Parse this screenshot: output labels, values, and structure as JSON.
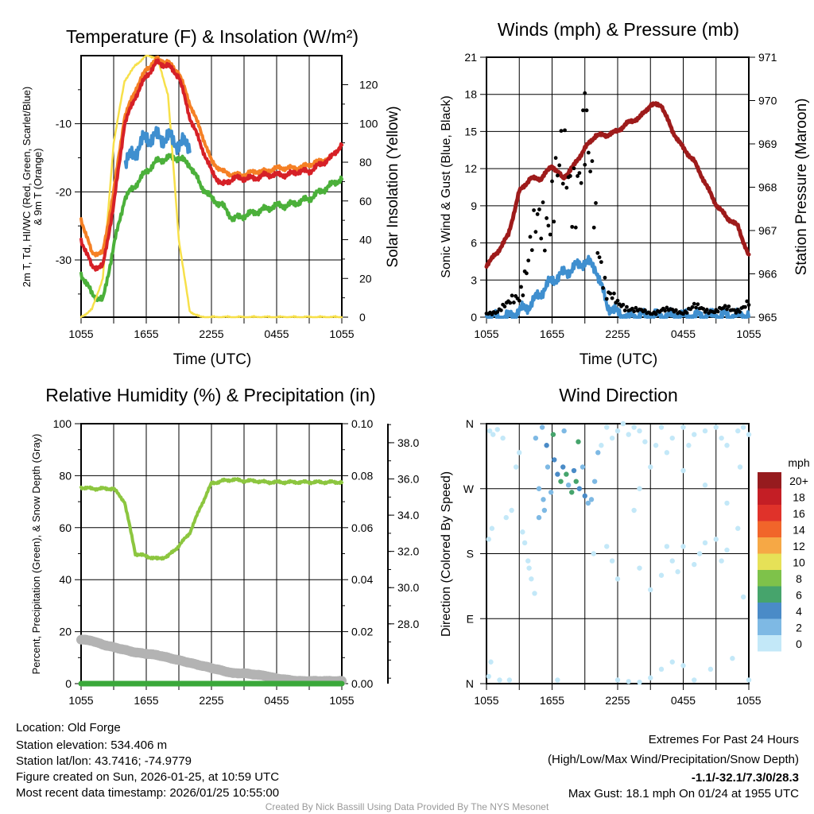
{
  "colors": {
    "red": "#d62027",
    "orange": "#f58025",
    "green": "#4bb03a",
    "blue": "#3f8fcf",
    "yellow": "#f7e04a",
    "maroon": "#9e1b1b",
    "black": "#000000",
    "rh": "#8cc63f",
    "precip": "#3aa83a",
    "snow": "#b3b3b3",
    "credit": "#999999",
    "extreme": "#d0202a"
  },
  "x_ticks": [
    "1055",
    "1655",
    "2255",
    "0455",
    "1055"
  ],
  "chart_data": [
    {
      "type": "line",
      "title": "Temperature (F) & Insolation (W/m²)",
      "xlabel": "Time (UTC)",
      "ylabel": "2m T, Td, HI/WC (Red, Green, Scarlet/Blue)",
      "ylabel2": "& 9m T (Orange)",
      "y2label": "Solar Insolation (Yellow)",
      "ylim": [
        -38.4,
        0
      ],
      "y2lim": [
        0,
        135
      ],
      "yticks": [
        "-30",
        "-20",
        "-10"
      ],
      "ytick_values": [
        -30,
        -20,
        -10
      ],
      "y2ticks": [
        "0",
        "20",
        "40",
        "60",
        "80",
        "100",
        "120"
      ],
      "x_hours": [
        0,
        1,
        2,
        3,
        4,
        5,
        6,
        7,
        8,
        9,
        10,
        11,
        12,
        13,
        14,
        15,
        16,
        17,
        18,
        19,
        20,
        21,
        22,
        23,
        24
      ],
      "series": [
        {
          "name": "2m T",
          "color_key": "red",
          "values": [
            -27,
            -31,
            -31,
            -22,
            -10,
            -6,
            -3,
            -1,
            -1.5,
            -3,
            -9,
            -13,
            -17,
            -19,
            -18,
            -18,
            -18,
            -17.5,
            -17.5,
            -17.5,
            -17,
            -17,
            -16,
            -15,
            -13
          ]
        },
        {
          "name": "9m T",
          "color_key": "orange",
          "values": [
            -24,
            -29,
            -29,
            -20,
            -9,
            -5,
            -2,
            -0.5,
            -1,
            -2.5,
            -7,
            -11,
            -15.5,
            -17,
            -17.5,
            -17.5,
            -17,
            -17,
            -16.5,
            -16.5,
            -16.5,
            -16,
            -15.5,
            -15,
            -13
          ]
        },
        {
          "name": "Td",
          "color_key": "green",
          "values": [
            -32,
            -35,
            -36,
            -28,
            -21,
            -19,
            -17,
            -15.5,
            -15,
            -15,
            -16,
            -19,
            -21,
            -22,
            -24,
            -23.5,
            -23,
            -22.5,
            -22,
            -22,
            -21.5,
            -21,
            -20,
            -19,
            -18
          ]
        },
        {
          "name": "HI/WC",
          "color_key": "blue",
          "values": [
            null,
            null,
            null,
            null,
            -16,
            -14,
            -12,
            -12,
            -12,
            -13,
            -13,
            null,
            null,
            null,
            null,
            null,
            null,
            null,
            null,
            null,
            null,
            null,
            null,
            null,
            null
          ]
        },
        {
          "name": "Solar Insolation",
          "color_key": "yellow",
          "axis": "y2",
          "values": [
            0,
            4,
            20,
            90,
            122,
            130,
            135,
            134,
            115,
            40,
            3,
            0,
            0,
            0,
            0,
            0,
            0,
            0,
            0,
            0,
            0,
            0,
            0,
            0,
            0
          ]
        }
      ]
    },
    {
      "type": "line",
      "title": "Winds (mph) & Pressure (mb)",
      "xlabel": "Time (UTC)",
      "ylabel": "Sonic Wind & Gust (Blue, Black)",
      "y2label": "Station Pressure (Maroon)",
      "ylim": [
        0,
        21
      ],
      "y2lim": [
        965,
        971
      ],
      "yticks": [
        "0",
        "3",
        "6",
        "9",
        "12",
        "15",
        "18",
        "21"
      ],
      "y2ticks": [
        "965",
        "966",
        "967",
        "968",
        "969",
        "970",
        "971"
      ],
      "x_hours": [
        0,
        1,
        2,
        3,
        4,
        5,
        6,
        7,
        8,
        9,
        10,
        11,
        12,
        13,
        14,
        15,
        16,
        17,
        18,
        19,
        20,
        21,
        22,
        23,
        24
      ],
      "series": [
        {
          "name": "Sonic Wind",
          "color_key": "blue",
          "values": [
            0,
            0,
            0,
            0.5,
            1,
            2,
            3,
            3.5,
            4,
            4.5,
            4,
            1,
            0.3,
            0,
            0.1,
            0.1,
            0.1,
            0.1,
            0.1,
            0.1,
            0.1,
            0.1,
            0.1,
            0.1,
            0.2
          ]
        },
        {
          "name": "Gust",
          "color_key": "black",
          "type": "scatter",
          "values": [
            0.3,
            0.5,
            1,
            2,
            5,
            8,
            10,
            11,
            12,
            13,
            8,
            2,
            1,
            0.8,
            0.5,
            0.3,
            0.6,
            0.5,
            0.4,
            0.8,
            0.6,
            0.5,
            0.7,
            0.6,
            1
          ]
        },
        {
          "name": "Station Pressure",
          "color_key": "maroon",
          "axis": "y2",
          "values": [
            966.2,
            966.5,
            966.9,
            967.9,
            968.2,
            968.2,
            968.5,
            968.2,
            968.5,
            968.9,
            969.2,
            969.2,
            969.3,
            969.5,
            969.6,
            969.9,
            969.9,
            969.3,
            968.9,
            968.6,
            968.1,
            967.6,
            967.3,
            967.1,
            966.4
          ]
        }
      ]
    },
    {
      "type": "line",
      "title": "Relative Humidity (%) & Precipitation (in)",
      "ylabel": "Percent, Precipitation (Green), & Snow Depth (Gray)",
      "ylim": [
        0,
        100
      ],
      "y2lim": [
        0,
        0.1
      ],
      "y3lim": [
        24.7,
        39.05
      ],
      "yticks": [
        "0",
        "20",
        "40",
        "60",
        "80",
        "100"
      ],
      "y2ticks": [
        "0.00",
        "0.02",
        "0.04",
        "0.06",
        "0.08",
        "0.10"
      ],
      "y3ticks": [
        "28.0",
        "30.0",
        "32.0",
        "34.0",
        "36.0",
        "38.0"
      ],
      "x_hours": [
        0,
        1,
        2,
        3,
        4,
        5,
        6,
        7,
        8,
        9,
        10,
        11,
        12,
        13,
        14,
        15,
        16,
        17,
        18,
        19,
        20,
        21,
        22,
        23,
        24
      ],
      "series": [
        {
          "name": "Relative Humidity",
          "color_key": "rh",
          "values": [
            75.5,
            75,
            75,
            75,
            70,
            50,
            49,
            48,
            49,
            53,
            58,
            68,
            77,
            78,
            78.5,
            78,
            78,
            77.5,
            77.5,
            77.5,
            77.5,
            77.5,
            77.5,
            77.5,
            77.5
          ]
        },
        {
          "name": "Snow Depth",
          "color_key": "snow",
          "values": [
            17,
            16.5,
            15,
            14,
            13,
            12,
            11.5,
            11,
            10,
            9,
            8,
            7,
            6,
            5,
            4,
            4,
            3.5,
            3,
            2,
            1.5,
            1,
            1,
            1,
            1,
            1
          ]
        },
        {
          "name": "Precipitation",
          "color_key": "precip",
          "values": [
            0,
            0,
            0,
            0,
            0,
            0,
            0,
            0,
            0,
            0,
            0,
            0,
            0,
            0,
            0,
            0,
            0,
            0,
            0,
            0,
            0,
            0,
            0,
            0,
            0
          ]
        }
      ]
    },
    {
      "type": "scatter",
      "title": "Wind Direction",
      "ylabel": "Direction (Colored By Speed)",
      "yticks": [
        "N",
        "E",
        "S",
        "W",
        "N"
      ],
      "ylim": [
        0,
        360
      ],
      "legend": {
        "title": "mph",
        "labels": [
          "0",
          "2",
          "4",
          "6",
          "8",
          "10",
          "12",
          "14",
          "16",
          "18",
          "20+"
        ],
        "colors": [
          "#c3e8f8",
          "#7eb9e4",
          "#4a8bc7",
          "#46a46c",
          "#7ec24a",
          "#e6e157",
          "#f6a845",
          "#f1652a",
          "#e0322a",
          "#c41e25",
          "#961b1e"
        ]
      },
      "points": [
        [
          0.3,
          350,
          0
        ],
        [
          0.6,
          345,
          1
        ],
        [
          1,
          352,
          0
        ],
        [
          1.5,
          340,
          1
        ],
        [
          0.2,
          200,
          0
        ],
        [
          0.5,
          215,
          1
        ],
        [
          1.8,
          230,
          0
        ],
        [
          2.3,
          240,
          1
        ],
        [
          2.7,
          300,
          1
        ],
        [
          3,
          320,
          1
        ],
        [
          0.4,
          30,
          0
        ],
        [
          0.2,
          10,
          0
        ],
        [
          1.2,
          5,
          0
        ],
        [
          2.1,
          5,
          0
        ],
        [
          3.3,
          210,
          1
        ],
        [
          3.5,
          195,
          1
        ],
        [
          3.8,
          170,
          1
        ],
        [
          3.9,
          160,
          1
        ],
        [
          4.1,
          145,
          1
        ],
        [
          4.4,
          125,
          1
        ],
        [
          4.5,
          340,
          3
        ],
        [
          5.1,
          355,
          3
        ],
        [
          5.5,
          330,
          4
        ],
        [
          5.6,
          300,
          3
        ],
        [
          6.2,
          310,
          4
        ],
        [
          6.5,
          290,
          5
        ],
        [
          7,
          300,
          4
        ],
        [
          7.3,
          290,
          6
        ],
        [
          7.5,
          275,
          3
        ],
        [
          8,
          295,
          4
        ],
        [
          8.2,
          280,
          7
        ],
        [
          8.5,
          270,
          5
        ],
        [
          9,
          260,
          4
        ],
        [
          9.3,
          250,
          3
        ],
        [
          9.6,
          255,
          3
        ],
        [
          4.8,
          270,
          3
        ],
        [
          5.2,
          255,
          2
        ],
        [
          5.9,
          265,
          3
        ],
        [
          6.8,
          280,
          6
        ],
        [
          7.8,
          265,
          6
        ],
        [
          8.8,
          300,
          3
        ],
        [
          5.3,
          240,
          2
        ],
        [
          4.8,
          230,
          2
        ],
        [
          9.9,
          280,
          2
        ],
        [
          10.2,
          320,
          2
        ],
        [
          10.5,
          330,
          1
        ],
        [
          6.1,
          345,
          7
        ],
        [
          8.4,
          335,
          7
        ],
        [
          7.1,
          350,
          2
        ],
        [
          6.5,
          5,
          1
        ],
        [
          9.8,
          180,
          1
        ],
        [
          11,
          355,
          1
        ],
        [
          11.5,
          340,
          1
        ],
        [
          12,
          350,
          0
        ],
        [
          12.5,
          360,
          1
        ],
        [
          13,
          345,
          1
        ],
        [
          13.5,
          355,
          0
        ],
        [
          14,
          350,
          1
        ],
        [
          14.5,
          335,
          1
        ],
        [
          15,
          300,
          0
        ],
        [
          15.5,
          330,
          1
        ],
        [
          16,
          355,
          1
        ],
        [
          16.5,
          320,
          1
        ],
        [
          17,
          340,
          1
        ],
        [
          18,
          355,
          1
        ],
        [
          18.5,
          330,
          1
        ],
        [
          19,
          345,
          1
        ],
        [
          20,
          350,
          1
        ],
        [
          21,
          355,
          1
        ],
        [
          21.5,
          340,
          1
        ],
        [
          22,
          330,
          1
        ],
        [
          23,
          350,
          1
        ],
        [
          23.5,
          355,
          1
        ],
        [
          24,
          345,
          1
        ],
        [
          12,
          5,
          0
        ],
        [
          13,
          3,
          0
        ],
        [
          14,
          2,
          0
        ],
        [
          15,
          8,
          0
        ],
        [
          16,
          20,
          1
        ],
        [
          17,
          30,
          1
        ],
        [
          18,
          25,
          1
        ],
        [
          19,
          5,
          0
        ],
        [
          20.5,
          20,
          1
        ],
        [
          22.5,
          35,
          1
        ],
        [
          24,
          5,
          0
        ],
        [
          15,
          130,
          1
        ],
        [
          16,
          150,
          1
        ],
        [
          17,
          170,
          1
        ],
        [
          18,
          190,
          1
        ],
        [
          19,
          165,
          1
        ],
        [
          20,
          195,
          1
        ],
        [
          21,
          200,
          1
        ],
        [
          22,
          185,
          1
        ],
        [
          23,
          215,
          1
        ],
        [
          11,
          190,
          1
        ],
        [
          11.5,
          170,
          1
        ],
        [
          12,
          145,
          0
        ],
        [
          14,
          160,
          1
        ],
        [
          16.5,
          190,
          1
        ],
        [
          17.5,
          155,
          1
        ],
        [
          19.5,
          180,
          1
        ],
        [
          21.5,
          170,
          1
        ],
        [
          23.5,
          120,
          1
        ],
        [
          13.5,
          240,
          1
        ],
        [
          18,
          295,
          1
        ],
        [
          22,
          250,
          1
        ],
        [
          14,
          270,
          1
        ],
        [
          20,
          275,
          1
        ],
        [
          23.2,
          300,
          1
        ]
      ]
    }
  ],
  "footer": {
    "location": "Location: Old Forge",
    "elevation": "Station elevation: 534.406 m",
    "latlon": "Station lat/lon: 43.7416; -74.9779",
    "created": "Figure created on Sun, 2026-01-25, at 10:59 UTC",
    "recent": "Most recent data timestamp: 2026/01/25 10:55:00",
    "extremes_title": "Extremes For Past 24 Hours",
    "extremes_sub": "(High/Low/Max Wind/Precipitation/Snow Depth)",
    "extremes_values": "-1.1/-32.1/7.3/0/28.3",
    "max_gust": "Max Gust: 18.1 mph On 01/24 at 1955 UTC",
    "credit": "Created By Nick Bassill Using Data Provided By The NYS Mesonet"
  }
}
